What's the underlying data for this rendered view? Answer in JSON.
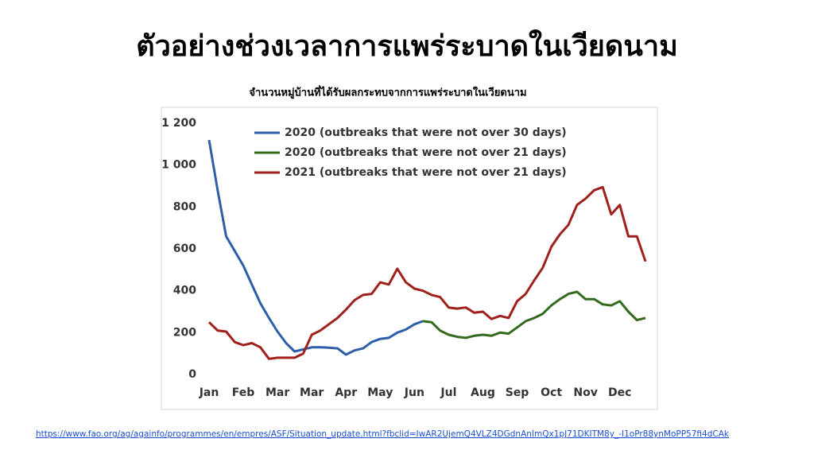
{
  "title": "ตัวอย่างช่วงเวลาการแพร่ระบาดในเวียดนาม",
  "source_url": "https://www.fao.org/ag/againfo/programmes/en/empres/ASF/Situation_update.html?fbclid=IwAR2UjemQ4VLZ4DGdnAnImQx1pJ71DKITM8y_-I1oPr88ynMoPP57fi4dCAk",
  "chart_data": {
    "type": "line",
    "title": "จำนวนหมู่บ้านที่ได้รับผลกระทบจากการแพร่ระบาดในเวียดนาม",
    "x": [
      0,
      0.25,
      0.5,
      0.75,
      1,
      1.25,
      1.5,
      1.75,
      2,
      2.25,
      2.5,
      2.75,
      3,
      3.25,
      3.5,
      3.75,
      4,
      4.25,
      4.5,
      4.75,
      5,
      5.25,
      5.5,
      5.75,
      6,
      6.25,
      6.5,
      6.75,
      7,
      7.25,
      7.5,
      7.75,
      8,
      8.25,
      8.5,
      8.75,
      9,
      9.25,
      9.5,
      9.75,
      10,
      10.25,
      10.5,
      10.75,
      11,
      11.25,
      11.5,
      11.75,
      12,
      12.25,
      12.5,
      12.75
    ],
    "xlim": [
      0,
      12.75
    ],
    "xticks": [
      {
        "value": 0,
        "label": "Jan"
      },
      {
        "value": 1,
        "label": "Feb"
      },
      {
        "value": 2,
        "label": "Mar"
      },
      {
        "value": 3,
        "label": "Mar"
      },
      {
        "value": 4,
        "label": "Apr"
      },
      {
        "value": 5,
        "label": "May"
      },
      {
        "value": 6,
        "label": "Jun"
      },
      {
        "value": 7,
        "label": "Jul"
      },
      {
        "value": 8,
        "label": "Aug"
      },
      {
        "value": 9,
        "label": "Sep"
      },
      {
        "value": 10,
        "label": "Oct"
      },
      {
        "value": 11,
        "label": "Nov"
      },
      {
        "value": 12,
        "label": "Dec"
      }
    ],
    "ylim": [
      0,
      1200
    ],
    "yticks": [
      0,
      200,
      400,
      600,
      800,
      {
        "value": 1000,
        "label": "1 000"
      },
      {
        "value": 1200,
        "label": "1 200"
      }
    ],
    "legend": "top",
    "series": [
      {
        "name": "2020 (outbreaks that were not over 30 days)",
        "color": "#2e5ea8",
        "values": [
          1120,
          880,
          660,
          590,
          520,
          430,
          340,
          270,
          205,
          150,
          110,
          120,
          130,
          130,
          128,
          125,
          95,
          115,
          125,
          155,
          170,
          175,
          200,
          215,
          240,
          255,
          null,
          null,
          null,
          null,
          null,
          null,
          null,
          null,
          null,
          null,
          null,
          null,
          null,
          null,
          null,
          null,
          null,
          null,
          null,
          null,
          null,
          null,
          null,
          null,
          null,
          null
        ]
      },
      {
        "name": "2020 (outbreaks that were not over 21 days)",
        "color": "#336b1e",
        "values": [
          null,
          null,
          null,
          null,
          null,
          null,
          null,
          null,
          null,
          null,
          null,
          null,
          null,
          null,
          null,
          null,
          null,
          null,
          null,
          null,
          null,
          null,
          null,
          null,
          null,
          255,
          250,
          210,
          190,
          180,
          175,
          185,
          190,
          185,
          200,
          195,
          225,
          255,
          270,
          290,
          330,
          360,
          385,
          395,
          360,
          360,
          335,
          330,
          350,
          300,
          260,
          270
        ]
      },
      {
        "name": "2021 (outbreaks that were not over 21 days)",
        "color": "#a0201c",
        "values": [
          250,
          210,
          205,
          155,
          140,
          150,
          130,
          75,
          80,
          80,
          80,
          100,
          190,
          210,
          240,
          270,
          310,
          355,
          380,
          385,
          440,
          430,
          505,
          440,
          410,
          400,
          380,
          370,
          320,
          315,
          320,
          295,
          300,
          265,
          280,
          270,
          350,
          385,
          450,
          510,
          610,
          670,
          715,
          810,
          840,
          880,
          895,
          765,
          810,
          660,
          660,
          540
        ]
      }
    ]
  }
}
